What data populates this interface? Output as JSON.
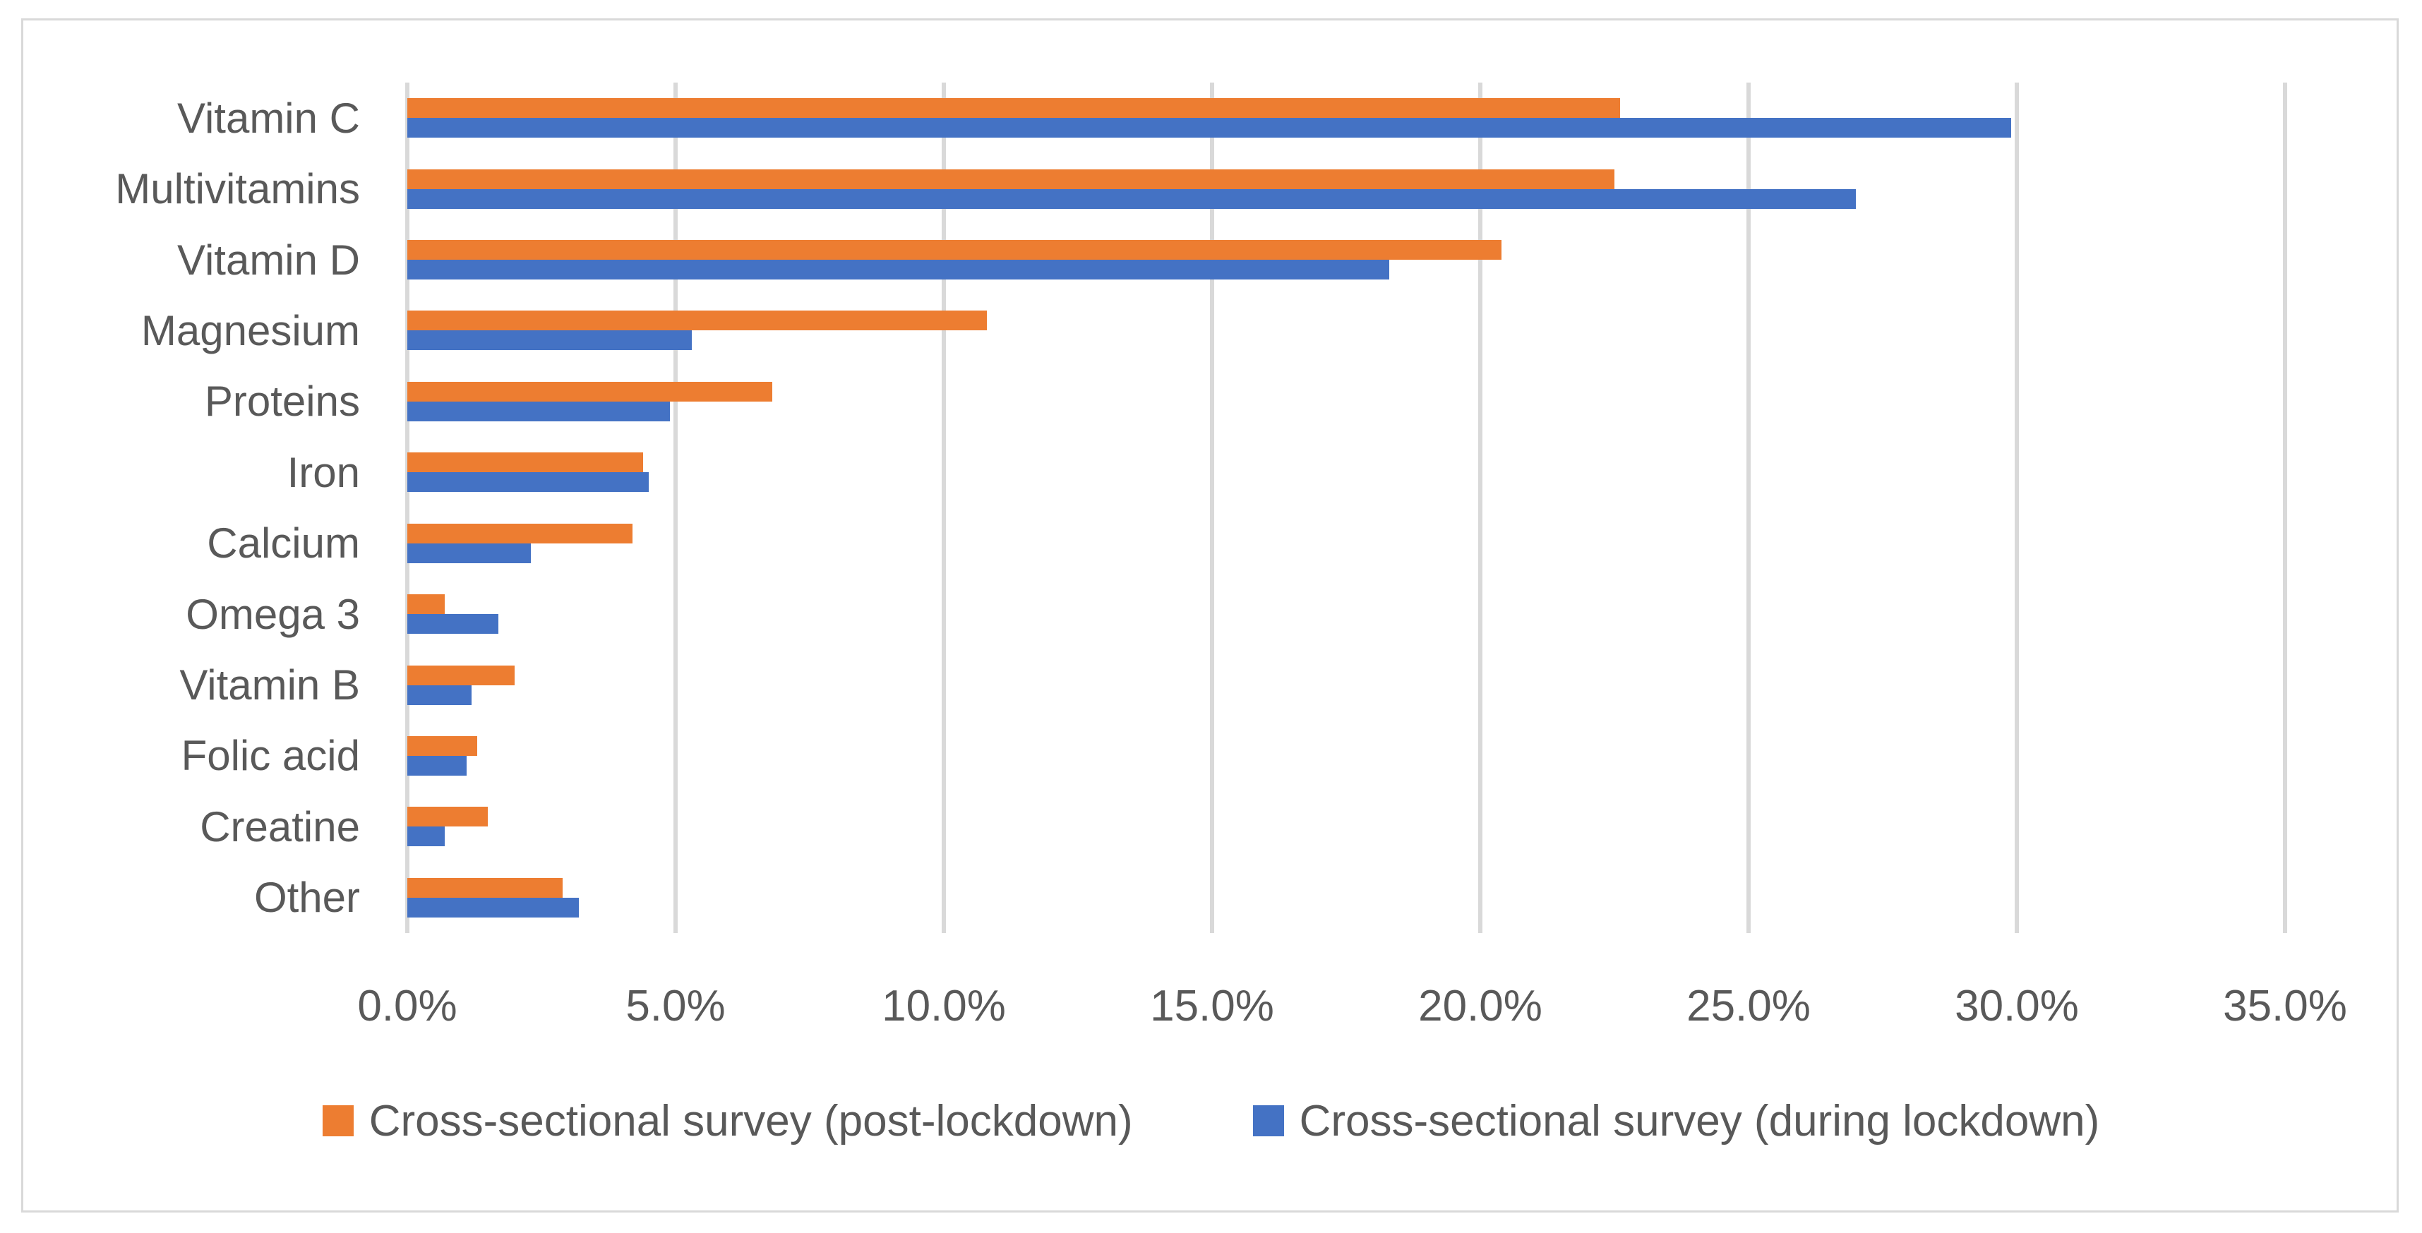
{
  "chart_data": {
    "type": "bar",
    "orientation": "horizontal",
    "title": "",
    "xlabel": "",
    "ylabel": "",
    "categories": [
      "Vitamin C",
      "Multivitamins",
      "Vitamin D",
      "Magnesium",
      "Proteins",
      "Iron",
      "Calcium",
      "Omega 3",
      "Vitamin B",
      "Folic acid",
      "Creatine",
      "Other"
    ],
    "series": [
      {
        "name": "Cross-sectional survey (post-lockdown)",
        "color": "#ED7D31",
        "values": [
          22.6,
          22.5,
          20.4,
          10.8,
          6.8,
          4.4,
          4.2,
          0.7,
          2.0,
          1.3,
          1.5,
          2.9
        ]
      },
      {
        "name": "Cross-sectional survey (during lockdown)",
        "color": "#4472C4",
        "values": [
          29.9,
          27.0,
          18.3,
          5.3,
          4.9,
          4.5,
          2.3,
          1.7,
          1.2,
          1.1,
          0.7,
          3.2
        ]
      }
    ],
    "x_axis": {
      "min": 0,
      "max": 35,
      "tick_step": 5,
      "tick_labels": [
        "0.0%",
        "5.0%",
        "10.0%",
        "15.0%",
        "20.0%",
        "25.0%",
        "30.0%",
        "35.0%"
      ]
    },
    "grid": true,
    "legend_position": "bottom"
  },
  "styles": {
    "text_color": "#595959",
    "gridline_color": "#D9D9D9",
    "border_color": "#D9D9D9",
    "background": "#FFFFFF"
  }
}
